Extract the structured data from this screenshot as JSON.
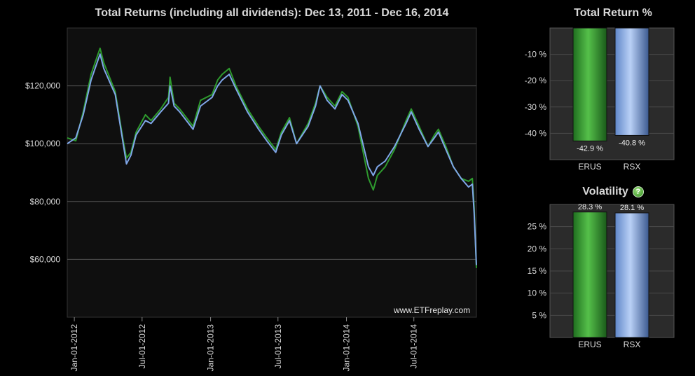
{
  "main_chart": {
    "title": "Total Returns (including all dividends): Dec 13, 2011 - Dec 16, 2014",
    "watermark": "www.ETFreplay.com"
  },
  "return_panel": {
    "title": "Total Return %"
  },
  "volatility_panel": {
    "title": "Volatility",
    "help_icon": "question-mark-icon",
    "help_glyph": "?"
  },
  "colors": {
    "erus": "#2e9a2e",
    "rsx": "#7fa6e8",
    "background": "#0f0f0f",
    "panel": "#2a2a2a"
  },
  "chart_data": [
    {
      "type": "line",
      "title": "Total Returns (including all dividends): Dec 13, 2011 - Dec 16, 2014",
      "x_tick_labels": [
        "Jan-01-2012",
        "Jul-01-2012",
        "Jan-01-2013",
        "Jul-01-2013",
        "Jan-01-2014",
        "Jul-01-2014"
      ],
      "x_ticks": [
        "2012-01-01",
        "2012-07-01",
        "2013-01-01",
        "2013-07-01",
        "2014-01-01",
        "2014-07-01"
      ],
      "xlim": [
        "2011-12-13",
        "2014-12-16"
      ],
      "y_tick_labels": [
        "$60,000",
        "$80,000",
        "$100,000",
        "$120,000"
      ],
      "y_ticks": [
        60000,
        80000,
        100000,
        120000
      ],
      "ylim": [
        40000,
        140000
      ],
      "x": [
        "2011-12-13",
        "2012-01-05",
        "2012-01-25",
        "2012-02-15",
        "2012-03-10",
        "2012-03-20",
        "2012-04-20",
        "2012-05-10",
        "2012-05-20",
        "2012-06-01",
        "2012-06-15",
        "2012-07-10",
        "2012-07-25",
        "2012-08-20",
        "2012-09-10",
        "2012-09-14",
        "2012-09-25",
        "2012-10-10",
        "2012-11-15",
        "2012-12-05",
        "2013-01-05",
        "2013-01-20",
        "2013-02-01",
        "2013-02-20",
        "2013-03-10",
        "2013-04-10",
        "2013-05-10",
        "2013-06-01",
        "2013-06-25",
        "2013-07-10",
        "2013-08-01",
        "2013-08-20",
        "2013-09-20",
        "2013-10-10",
        "2013-10-22",
        "2013-11-10",
        "2013-12-01",
        "2013-12-20",
        "2014-01-05",
        "2014-02-01",
        "2014-03-01",
        "2014-03-14",
        "2014-03-25",
        "2014-04-15",
        "2014-05-10",
        "2014-06-10",
        "2014-06-24",
        "2014-07-15",
        "2014-08-08",
        "2014-08-25",
        "2014-09-05",
        "2014-09-25",
        "2014-10-15",
        "2014-11-05",
        "2014-11-25",
        "2014-12-05",
        "2014-12-10",
        "2014-12-16"
      ],
      "series": [
        {
          "name": "ERUS",
          "values": [
            102000,
            101000,
            111000,
            124000,
            133000,
            128000,
            118000,
            102000,
            95000,
            97000,
            104000,
            110000,
            108000,
            112000,
            116000,
            123000,
            114000,
            112000,
            106000,
            115000,
            117000,
            122000,
            124000,
            126000,
            120000,
            112000,
            106000,
            102000,
            98000,
            104000,
            109000,
            100000,
            107000,
            114000,
            120000,
            116000,
            113000,
            118000,
            116000,
            106000,
            88000,
            84000,
            89000,
            92000,
            98000,
            108000,
            112000,
            106000,
            99000,
            103000,
            105000,
            99000,
            92000,
            88000,
            87000,
            88000,
            78000,
            57000
          ]
        },
        {
          "name": "RSX",
          "values": [
            100000,
            102000,
            110000,
            122000,
            131000,
            126000,
            117000,
            101000,
            93000,
            96000,
            103000,
            108000,
            107000,
            111000,
            114000,
            120000,
            113000,
            111000,
            105000,
            113000,
            116000,
            120000,
            122000,
            124000,
            119000,
            111000,
            105000,
            101000,
            97000,
            103000,
            108000,
            100000,
            106000,
            113000,
            120000,
            115000,
            112000,
            117000,
            115000,
            107000,
            92000,
            89000,
            92000,
            94000,
            99000,
            107000,
            111000,
            105000,
            99000,
            102000,
            104000,
            98000,
            92000,
            88000,
            85000,
            86000,
            76000,
            58000
          ]
        }
      ]
    },
    {
      "type": "bar",
      "title": "Total Return %",
      "categories": [
        "ERUS",
        "RSX"
      ],
      "values": [
        -42.9,
        -40.8
      ],
      "value_labels": [
        "-42.9 %",
        "-40.8 %"
      ],
      "y_tick_labels": [
        "-10 %",
        "-20 %",
        "-30 %",
        "-40 %"
      ],
      "y_ticks": [
        -10,
        -20,
        -30,
        -40
      ],
      "ylim": [
        -50,
        0
      ]
    },
    {
      "type": "bar",
      "title": "Volatility",
      "categories": [
        "ERUS",
        "RSX"
      ],
      "values": [
        28.3,
        28.1
      ],
      "value_labels": [
        "28.3 %",
        "28.1 %"
      ],
      "y_tick_labels": [
        "5 %",
        "10 %",
        "15 %",
        "20 %",
        "25 %"
      ],
      "y_ticks": [
        5,
        10,
        15,
        20,
        25
      ],
      "ylim": [
        0,
        30
      ]
    }
  ]
}
